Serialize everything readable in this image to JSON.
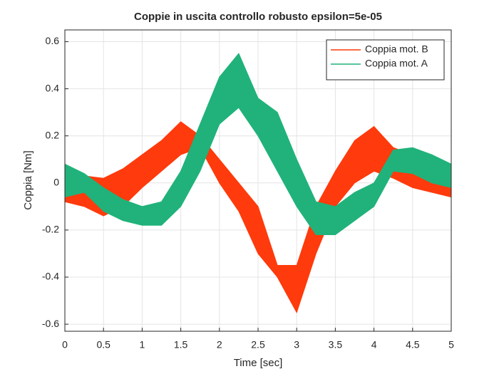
{
  "chart_data": {
    "type": "band",
    "title": "Coppie in uscita controllo robusto epsilon=5e-05",
    "x_label": "Time [sec]",
    "y_label": "Coppia [Nm]",
    "xlim": [
      0,
      5
    ],
    "ylim": [
      -0.63,
      0.65
    ],
    "xticks": [
      0,
      0.5,
      1,
      1.5,
      2,
      2.5,
      3,
      3.5,
      4,
      4.5,
      5
    ],
    "yticks": [
      -0.6,
      -0.4,
      -0.2,
      0,
      0.2,
      0.4,
      0.6
    ],
    "grid": true,
    "legend": "top-right",
    "series": [
      {
        "name": "Coppia mot. B",
        "color": "#ff3a0c",
        "x": [
          0,
          0.25,
          0.5,
          0.75,
          1,
          1.25,
          1.5,
          1.75,
          2,
          2.25,
          2.5,
          2.75,
          3,
          3.25,
          3.5,
          3.75,
          4,
          4.25,
          4.5,
          4.75,
          5
        ],
        "low": [
          -0.08,
          -0.1,
          -0.14,
          -0.1,
          -0.02,
          0.05,
          0.12,
          0.15,
          0.0,
          -0.12,
          -0.3,
          -0.4,
          -0.55,
          -0.3,
          -0.1,
          0.0,
          0.05,
          0.02,
          -0.02,
          -0.04,
          -0.06
        ],
        "high": [
          0.08,
          0.03,
          0.02,
          0.06,
          0.12,
          0.18,
          0.26,
          0.2,
          0.1,
          0.0,
          -0.1,
          -0.35,
          -0.35,
          -0.1,
          0.05,
          0.18,
          0.24,
          0.15,
          0.12,
          0.1,
          0.06
        ]
      },
      {
        "name": "Coppia mot. A",
        "color": "#20b27a",
        "x": [
          0,
          0.25,
          0.5,
          0.75,
          1,
          1.25,
          1.5,
          1.75,
          2,
          2.25,
          2.5,
          2.75,
          3,
          3.25,
          3.5,
          3.75,
          4,
          4.25,
          4.5,
          4.75,
          5
        ],
        "low": [
          -0.06,
          -0.04,
          -0.12,
          -0.16,
          -0.18,
          -0.18,
          -0.1,
          0.05,
          0.25,
          0.32,
          0.2,
          0.05,
          -0.1,
          -0.22,
          -0.22,
          -0.16,
          -0.1,
          0.05,
          0.04,
          0.0,
          -0.02
        ],
        "high": [
          0.08,
          0.04,
          -0.02,
          -0.07,
          -0.1,
          -0.08,
          0.05,
          0.25,
          0.45,
          0.55,
          0.36,
          0.3,
          0.1,
          -0.08,
          -0.1,
          -0.04,
          0.0,
          0.14,
          0.15,
          0.12,
          0.08
        ]
      }
    ]
  }
}
